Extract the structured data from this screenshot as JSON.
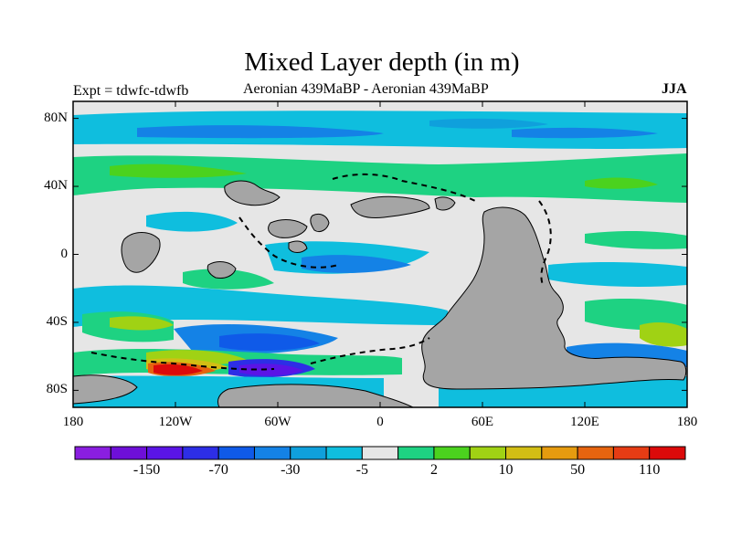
{
  "header": {
    "title": "Mixed Layer depth (in m)",
    "expt_label": "Expt = tdwfc-tdwfb",
    "subtitle": "Aeronian 439MaBP - Aeronian 439MaBP",
    "season": "JJA"
  },
  "map": {
    "lat_ticks": [
      {
        "value": 80,
        "label": "80N"
      },
      {
        "value": 40,
        "label": "40N"
      },
      {
        "value": 0,
        "label": "0"
      },
      {
        "value": -40,
        "label": "40S"
      },
      {
        "value": -80,
        "label": "80S"
      }
    ],
    "lon_ticks": [
      {
        "value": -180,
        "label": "180"
      },
      {
        "value": -120,
        "label": "120W"
      },
      {
        "value": -60,
        "label": "60W"
      },
      {
        "value": 0,
        "label": "0"
      },
      {
        "value": 60,
        "label": "60E"
      },
      {
        "value": 120,
        "label": "120E"
      },
      {
        "value": 180,
        "label": "180"
      }
    ],
    "land_color": "#a5a5a5",
    "neutral_color": "#e6e6e6"
  },
  "colorbar": {
    "colors": [
      "#8a1ee0",
      "#6e0fd8",
      "#5a14e6",
      "#2d2ee6",
      "#0f5ae8",
      "#1482e6",
      "#0fa0dc",
      "#0fbede",
      "#e6e6e6",
      "#1ed282",
      "#4bd21e",
      "#a0d214",
      "#d2be14",
      "#e69b0f",
      "#e6640f",
      "#e63c14",
      "#dc0a0a"
    ],
    "labels": [
      {
        "text": "-150",
        "after_box": 1
      },
      {
        "text": "-70",
        "after_box": 3
      },
      {
        "text": "-30",
        "after_box": 5
      },
      {
        "text": "-5",
        "after_box": 7
      },
      {
        "text": "2",
        "after_box": 9
      },
      {
        "text": "10",
        "after_box": 11
      },
      {
        "text": "50",
        "after_box": 13
      },
      {
        "text": "110",
        "after_box": 15
      }
    ]
  }
}
